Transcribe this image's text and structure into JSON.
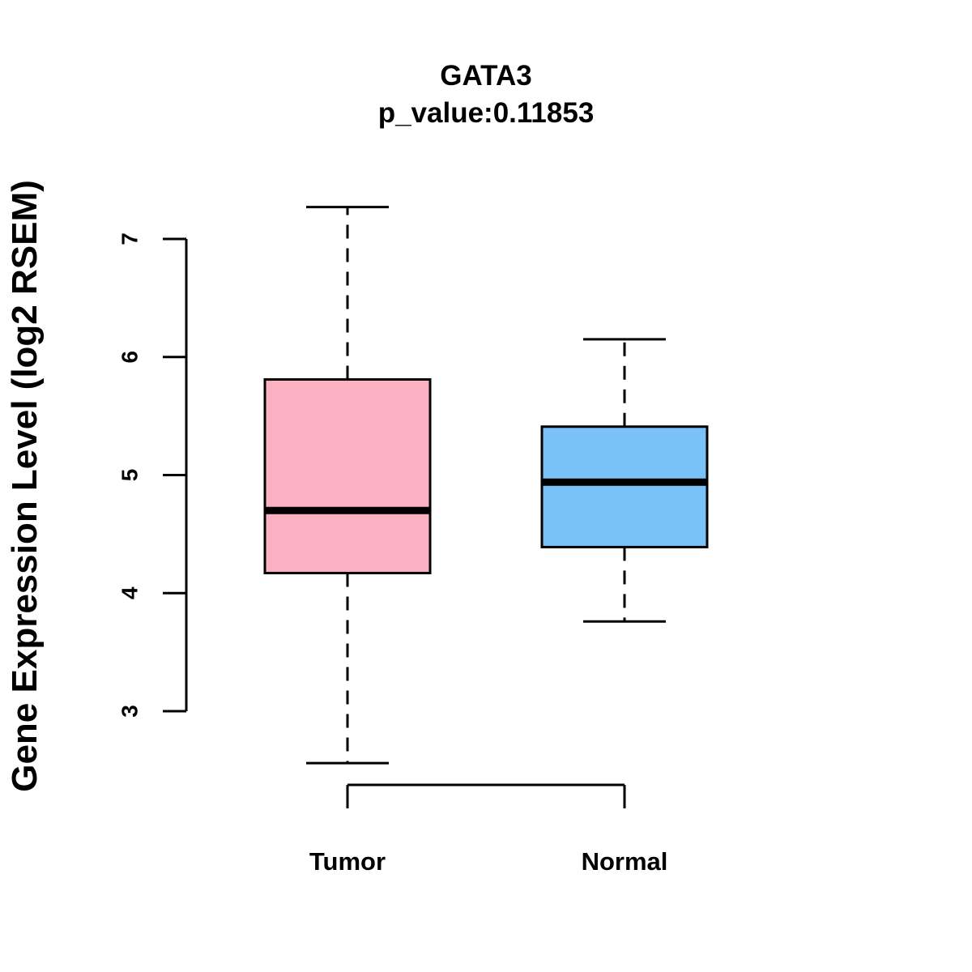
{
  "chart_data": {
    "type": "box",
    "title": "GATA3",
    "subtitle": "p_value:0.11853",
    "xlabel": "",
    "ylabel": "Gene Expression Level (log2 RSEM)",
    "ylim": [
      2.2,
      7.7
    ],
    "yticks": [
      3,
      4,
      5,
      6,
      7
    ],
    "categories": [
      "Tumor",
      "Normal"
    ],
    "boxes": [
      {
        "name": "Tumor",
        "whisker_low": 2.56,
        "q1": 4.17,
        "median": 4.7,
        "q3": 5.81,
        "whisker_high": 7.27,
        "color": "#FCB1C3"
      },
      {
        "name": "Normal",
        "whisker_low": 3.76,
        "q1": 4.39,
        "median": 4.94,
        "q3": 5.41,
        "whisker_high": 6.15,
        "color": "#79C1F7"
      }
    ],
    "grid": false,
    "legend": "none"
  }
}
